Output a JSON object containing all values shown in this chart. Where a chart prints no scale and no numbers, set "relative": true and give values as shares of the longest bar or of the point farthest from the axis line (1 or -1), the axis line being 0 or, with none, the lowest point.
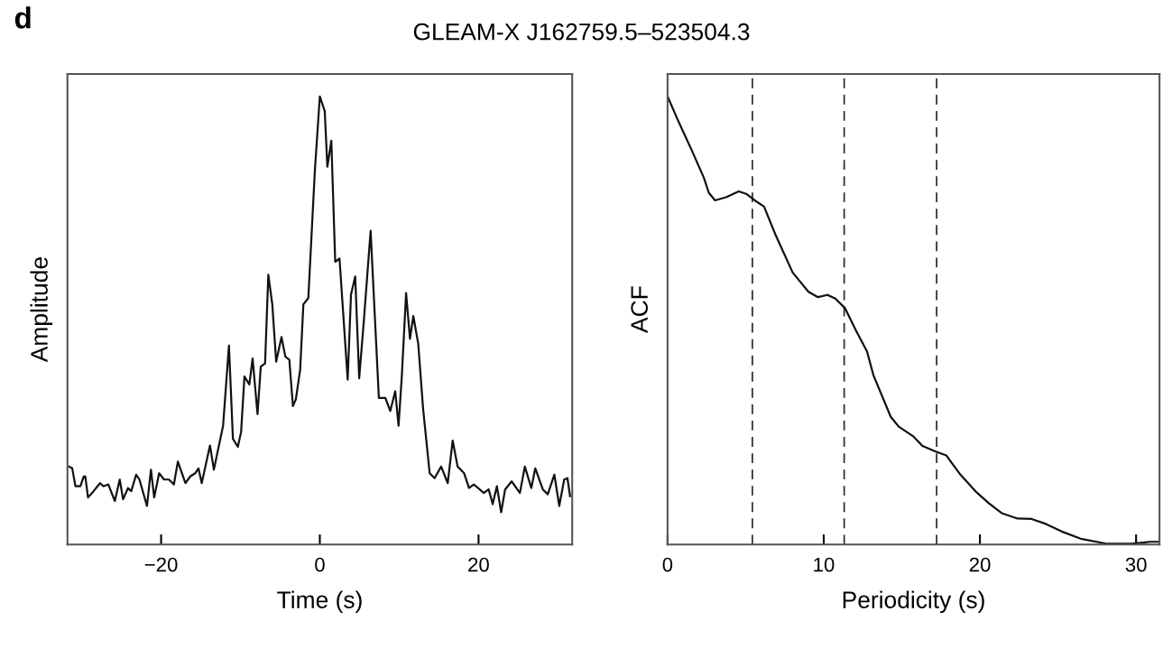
{
  "chart_data": [
    {
      "type": "line",
      "title": "GLEAM-X J162759.5–523504.3",
      "annotations": [
        "d"
      ],
      "xlabel": "Time (s)",
      "ylabel": "Amplitude",
      "relative": true,
      "tick_labels": "x",
      "xlim": [
        -31.8,
        31.8
      ],
      "xticks": [
        {
          "value": -20,
          "label": "−20"
        },
        0,
        20
      ],
      "grid": false,
      "legend": false,
      "line_style": "solid",
      "series": [
        {
          "color": "#111111",
          "x": [
            -31.61,
            -31.2,
            -30.79,
            -30.17,
            -29.75,
            -29.55,
            -29.21,
            -28.51,
            -27.69,
            -27.27,
            -26.65,
            -25.83,
            -25.21,
            -24.79,
            -24.17,
            -23.76,
            -23.14,
            -22.73,
            -21.78,
            -21.28,
            -20.87,
            -20.25,
            -19.63,
            -19.01,
            -18.39,
            -17.89,
            -16.94,
            -16.32,
            -15.7,
            -15.29,
            -14.88,
            -13.84,
            -13.35,
            -12.19,
            -11.45,
            -10.95,
            -10.33,
            -9.92,
            -9.5,
            -8.88,
            -8.47,
            -7.85,
            -7.44,
            -6.9,
            -6.49,
            -5.99,
            -5.5,
            -4.83,
            -4.34,
            -3.84,
            -3.39,
            -3.02,
            -2.48,
            -2.07,
            -1.45,
            -0.62,
            0,
            0.62,
            0.95,
            1.45,
            1.94,
            2.48,
            3.51,
            3.93,
            4.46,
            4.96,
            5.58,
            6.4,
            7.44,
            8.26,
            8.88,
            9.5,
            9.92,
            10.33,
            10.87,
            11.36,
            11.78,
            12.4,
            13.02,
            13.84,
            14.46,
            15.29,
            16.12,
            16.74,
            17.36,
            18.18,
            18.8,
            19.42,
            20.66,
            21.28,
            21.78,
            22.31,
            22.85,
            23.35,
            24.17,
            25.21,
            25.83,
            26.65,
            27.15,
            28.1,
            28.72,
            29.55,
            30.17,
            30.79,
            31.2,
            31.53
          ],
          "values": [
            0.174,
            0.17,
            0.13,
            0.13,
            0.152,
            0.152,
            0.105,
            0.119,
            0.137,
            0.13,
            0.134,
            0.097,
            0.145,
            0.101,
            0.126,
            0.119,
            0.156,
            0.145,
            0.086,
            0.167,
            0.105,
            0.159,
            0.145,
            0.145,
            0.134,
            0.185,
            0.137,
            0.152,
            0.159,
            0.17,
            0.137,
            0.221,
            0.167,
            0.265,
            0.444,
            0.236,
            0.218,
            0.251,
            0.375,
            0.357,
            0.415,
            0.291,
            0.397,
            0.404,
            0.602,
            0.536,
            0.408,
            0.463,
            0.419,
            0.412,
            0.309,
            0.324,
            0.39,
            0.536,
            0.55,
            0.836,
            1.0,
            0.967,
            0.843,
            0.901,
            0.631,
            0.638,
            0.368,
            0.558,
            0.598,
            0.371,
            0.507,
            0.7,
            0.327,
            0.327,
            0.298,
            0.342,
            0.265,
            0.375,
            0.561,
            0.459,
            0.51,
            0.448,
            0.302,
            0.159,
            0.148,
            0.174,
            0.137,
            0.232,
            0.174,
            0.159,
            0.126,
            0.134,
            0.115,
            0.123,
            0.09,
            0.13,
            0.072,
            0.123,
            0.141,
            0.115,
            0.174,
            0.126,
            0.17,
            0.123,
            0.112,
            0.156,
            0.086,
            0.145,
            0.148,
            0.108
          ]
        }
      ]
    },
    {
      "type": "line",
      "xlabel": "Periodicity (s)",
      "ylabel": "ACF",
      "relative": true,
      "tick_labels": "x",
      "xlim": [
        0,
        31.5
      ],
      "xticks": [
        0,
        10,
        20,
        30
      ],
      "grid": false,
      "legend": false,
      "line_style": "solid",
      "ref_lines": [
        {
          "axis": "x",
          "value": 5.43,
          "color": "#333333",
          "line_style": "dashed"
        },
        {
          "axis": "x",
          "value": 11.31,
          "color": "#333333",
          "line_style": "dashed"
        },
        {
          "axis": "x",
          "value": 17.23,
          "color": "#333333",
          "line_style": "dashed"
        }
      ],
      "series": [
        {
          "color": "#111111",
          "x": [
            0,
            0.71,
            1.52,
            2.33,
            2.64,
            3.04,
            3.75,
            4.56,
            5.07,
            5.58,
            6.18,
            6.89,
            8.01,
            9.02,
            9.63,
            10.24,
            10.74,
            11.35,
            12.06,
            12.77,
            13.18,
            14.29,
            14.8,
            15.71,
            16.32,
            17.13,
            17.84,
            18.75,
            19.77,
            20.58,
            21.39,
            22.4,
            23.31,
            24.22,
            25.24,
            26.45,
            28.08,
            29.7,
            30.91,
            31.48
          ],
          "values": [
            1.0,
            0.943,
            0.882,
            0.818,
            0.785,
            0.768,
            0.775,
            0.788,
            0.782,
            0.768,
            0.754,
            0.693,
            0.607,
            0.564,
            0.552,
            0.557,
            0.549,
            0.528,
            0.478,
            0.431,
            0.378,
            0.285,
            0.263,
            0.242,
            0.22,
            0.208,
            0.199,
            0.156,
            0.117,
            0.092,
            0.07,
            0.058,
            0.057,
            0.046,
            0.029,
            0.013,
            0.002,
            0.002,
            0.006,
            0.006
          ]
        }
      ]
    }
  ]
}
